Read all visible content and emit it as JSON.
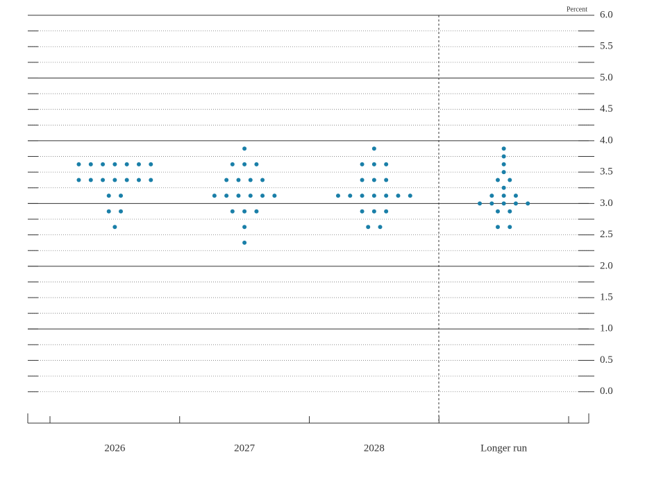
{
  "chart_data": {
    "type": "dot",
    "unit_label": "Percent",
    "categories": [
      "2026",
      "2027",
      "2028",
      "Longer run"
    ],
    "values": [
      [
        3.625,
        3.625,
        3.625,
        3.625,
        3.625,
        3.625,
        3.625,
        3.375,
        3.375,
        3.375,
        3.375,
        3.375,
        3.375,
        3.375,
        3.125,
        3.125,
        2.875,
        2.875,
        2.625
      ],
      [
        3.875,
        3.625,
        3.625,
        3.625,
        3.375,
        3.375,
        3.375,
        3.375,
        3.125,
        3.125,
        3.125,
        3.125,
        3.125,
        3.125,
        2.875,
        2.875,
        2.875,
        2.625,
        2.375
      ],
      [
        3.875,
        3.625,
        3.625,
        3.625,
        3.375,
        3.375,
        3.375,
        3.125,
        3.125,
        3.125,
        3.125,
        3.125,
        3.125,
        3.125,
        2.875,
        2.875,
        2.875,
        2.625,
        2.625
      ],
      [
        3.875,
        3.75,
        3.625,
        3.5,
        3.375,
        3.375,
        3.25,
        3.125,
        3.125,
        3.125,
        3,
        3,
        3,
        3,
        3,
        2.875,
        2.875,
        2.625,
        2.625
      ]
    ],
    "color": "#1a7fa8",
    "ylim": [
      -0.5,
      6
    ],
    "yticks": [
      {
        "value": 0,
        "label": "0.0"
      },
      0.5,
      {
        "value": 1,
        "label": "1.0"
      },
      1.5,
      {
        "value": 2,
        "label": "2.0"
      },
      2.5,
      {
        "value": 3,
        "label": "3.0"
      },
      3.5,
      {
        "value": 4,
        "label": "4.0"
      },
      4.5,
      {
        "value": 5,
        "label": "5.0"
      },
      5.5,
      {
        "value": 6,
        "label": "6.0"
      }
    ],
    "yminor": [
      0.25,
      0.75,
      1.25,
      1.75,
      2.25,
      2.75,
      3.25,
      3.75,
      4.25,
      4.75,
      5.25,
      5.75
    ],
    "grid": true
  }
}
